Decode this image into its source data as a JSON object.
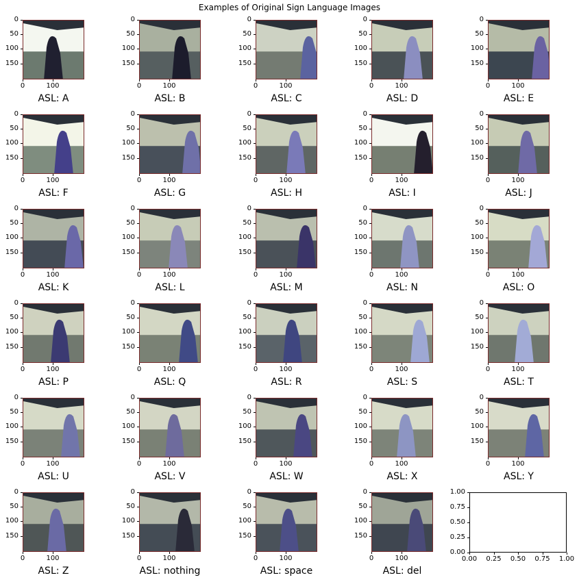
{
  "figure": {
    "title": "Examples of Original Sign Language Images",
    "y_ticks": [
      "0",
      "50",
      "100",
      "150"
    ],
    "x_ticks": [
      "0",
      "100"
    ],
    "empty_axes": {
      "y_ticks": [
        "1.00",
        "0.75",
        "0.50",
        "0.25",
        "0.00"
      ],
      "x_ticks": [
        "0.00",
        "0.25",
        "0.50",
        "0.75",
        "1.00"
      ]
    },
    "captions": [
      "ASL: A",
      "ASL: B",
      "ASL: C",
      "ASL: D",
      "ASL: E",
      "ASL: F",
      "ASL: G",
      "ASL: H",
      "ASL: I",
      "ASL: J",
      "ASL: K",
      "ASL: L",
      "ASL: M",
      "ASL: N",
      "ASL: O",
      "ASL: P",
      "ASL: Q",
      "ASL: R",
      "ASL: S",
      "ASL: T",
      "ASL: U",
      "ASL: V",
      "ASL: W",
      "ASL: X",
      "ASL: Y",
      "ASL: Z",
      "ASL: nothing",
      "ASL: space",
      "ASL: del"
    ]
  }
}
